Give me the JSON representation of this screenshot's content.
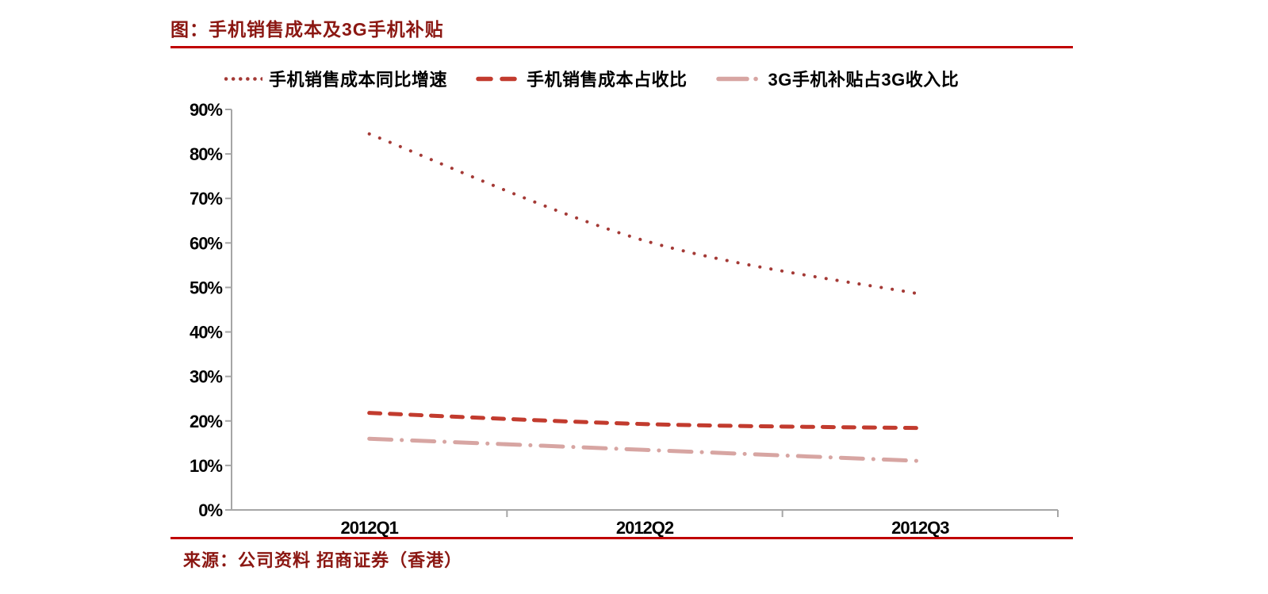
{
  "title": "图：手机销售成本及3G手机补贴",
  "source": "来源：公司资料 招商证券（香港）",
  "colors": {
    "heading_text": "#8B1712",
    "rule": "#C00000",
    "axis": "#A6A6A6",
    "tick_label": "#000000",
    "background": "#FFFFFF"
  },
  "chart_data": {
    "type": "line",
    "categories": [
      "2012Q1",
      "2012Q2",
      "2012Q3"
    ],
    "series": [
      {
        "name": "手机销售成本同比增速",
        "values": [
          84.5,
          60.5,
          48.5
        ],
        "color": "#A43A36",
        "style": "dotted"
      },
      {
        "name": "手机销售成本占收比",
        "values": [
          21.8,
          19.3,
          18.4
        ],
        "color": "#C23B2E",
        "style": "dashed"
      },
      {
        "name": "3G手机补贴占3G收入比",
        "values": [
          16.0,
          13.5,
          11.0
        ],
        "color": "#D7A5A2",
        "style": "dashdot"
      }
    ],
    "ylim": [
      0,
      90
    ],
    "ytick_step": 10,
    "ytick_labels": [
      "0%",
      "10%",
      "20%",
      "30%",
      "40%",
      "50%",
      "60%",
      "70%",
      "80%",
      "90%"
    ],
    "xlabel": "",
    "ylabel": "",
    "legend_position": "top",
    "grid": false
  }
}
